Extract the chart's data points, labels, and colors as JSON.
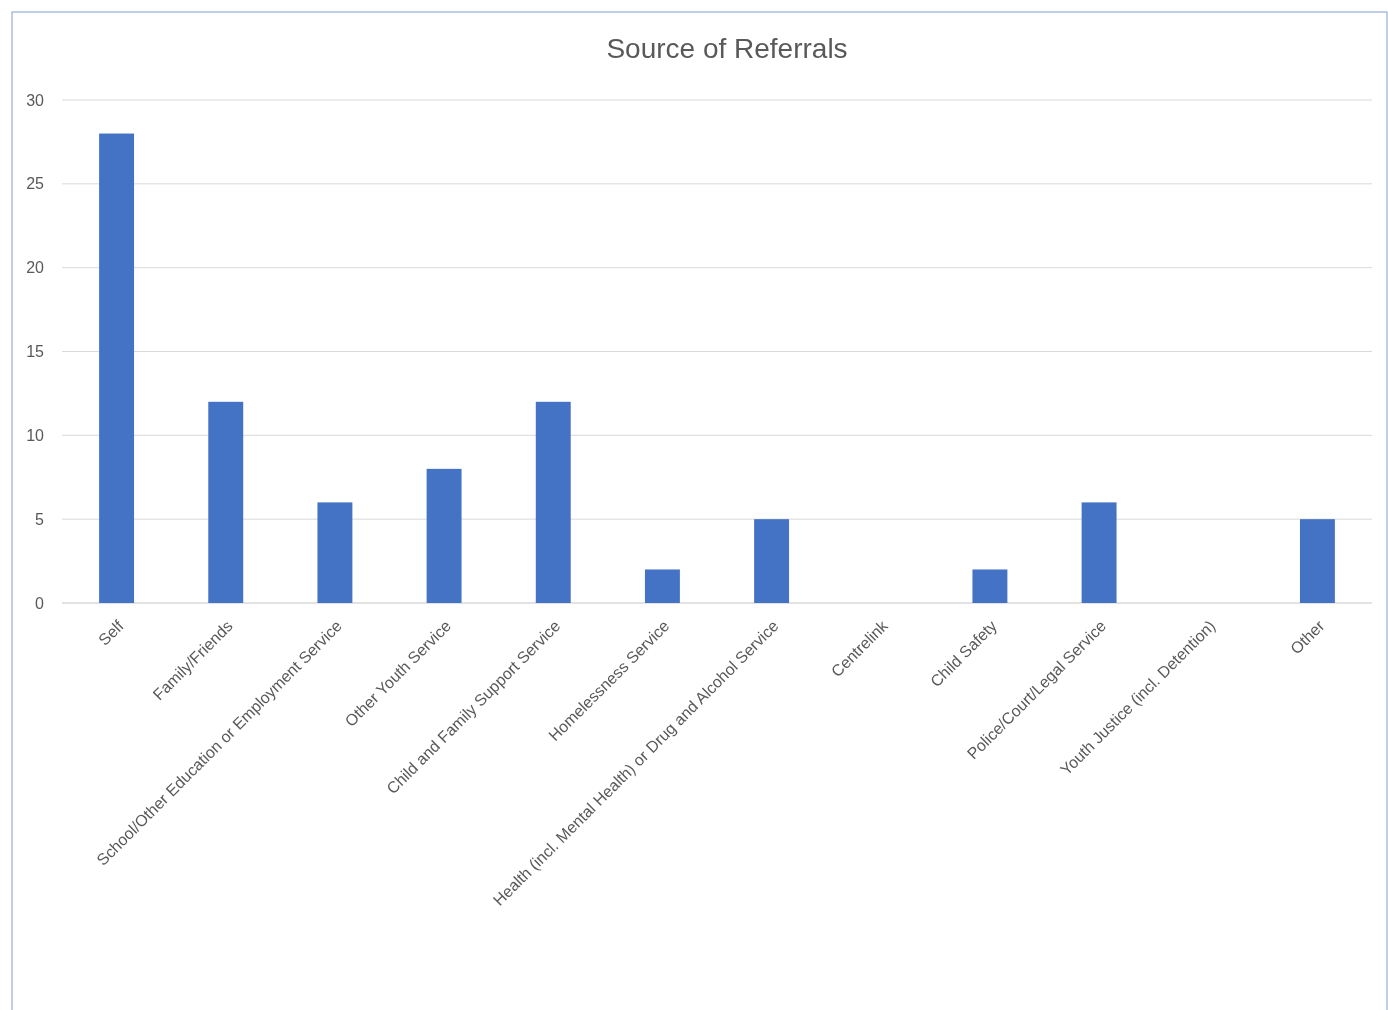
{
  "chart_data": {
    "type": "bar",
    "title": "Source of Referrals",
    "categories": [
      "Self",
      "Family/Friends",
      "School/Other Education or Employment Service",
      "Other Youth Service",
      "Child and Family Support Service",
      "Homelessness Service",
      "Health (incl. Mental Health) or Drug and Alcohol Service",
      "Centrelink",
      "Child Safety",
      "Police/Court/Legal Service",
      "Youth Justice (incl. Detention)",
      "Other"
    ],
    "values": [
      28,
      12,
      6,
      8,
      12,
      2,
      5,
      0,
      2,
      6,
      0,
      5
    ],
    "color": "#4472c4",
    "ylim": [
      0,
      30
    ],
    "yticks": [
      0,
      5,
      10,
      15,
      20,
      25,
      30
    ],
    "grid": "y"
  }
}
